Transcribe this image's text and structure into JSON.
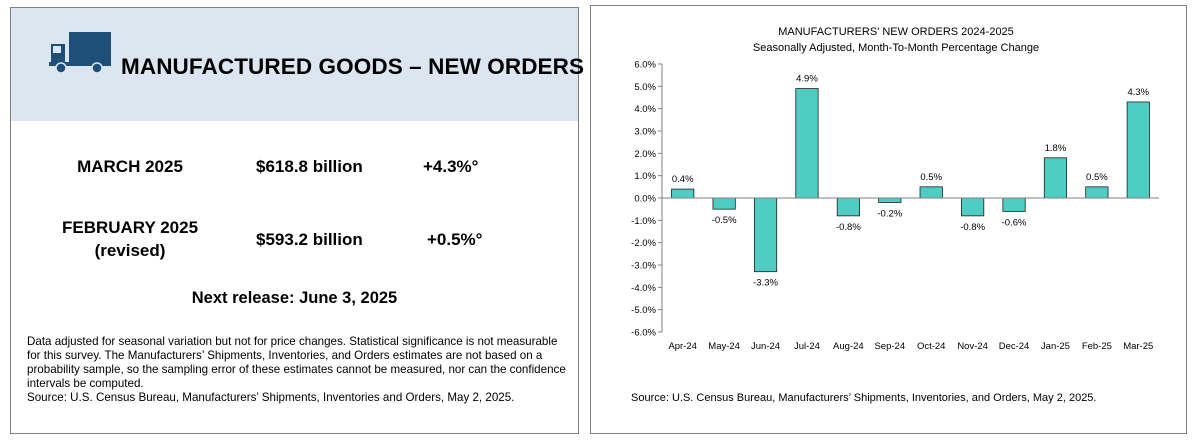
{
  "summary": {
    "title": "MANUFACTURED GOODS – NEW ORDERS",
    "rows": [
      {
        "label_line1": "MARCH 2025",
        "label_line2": "",
        "value": "$618.8 billion",
        "change": "+4.3%°"
      },
      {
        "label_line1": "FEBRUARY 2025",
        "label_line2": "(revised)",
        "value": "$593.2 billion",
        "change": "+0.5%°"
      }
    ],
    "next_release": "Next release: June 3, 2025",
    "note": "Data adjusted for seasonal variation but not for price changes. Statistical significance is not measurable for this survey.  The Manufacturers’ Shipments, Inventories, and Orders estimates are not based on a probability sample, so the sampling error of these estimates cannot be measured, nor can the confidence intervals be computed.",
    "source": "Source: U.S. Census Bureau, Manufacturers’ Shipments, Inventories and Orders, May 2, 2025."
  },
  "icons": {
    "truck": "truck-icon"
  },
  "colors": {
    "bar_fill": "#4ecdc4",
    "bar_stroke": "#1f1f1f",
    "header_bg": "#dce6f1",
    "truck": "#1f4e79"
  },
  "chart_data": {
    "type": "bar",
    "title": "MANUFACTURERS' NEW ORDERS 2024-2025",
    "subtitle": "Seasonally Adjusted,  Month-To-Month Percentage Change",
    "categories": [
      "Apr-24",
      "May-24",
      "Jun-24",
      "Jul-24",
      "Aug-24",
      "Sep-24",
      "Oct-24",
      "Nov-24",
      "Dec-24",
      "Jan-25",
      "Feb-25",
      "Mar-25"
    ],
    "values": [
      0.4,
      -0.5,
      -3.3,
      4.9,
      -0.8,
      -0.2,
      0.5,
      -0.8,
      -0.6,
      1.8,
      0.5,
      4.3
    ],
    "data_labels": [
      "0.4%",
      "-0.5%",
      "-3.3%",
      "4.9%",
      "-0.8%",
      "-0.2%",
      "0.5%",
      "-0.8%",
      "-0.6%",
      "1.8%",
      "0.5%",
      "4.3%"
    ],
    "yticks": [
      6.0,
      5.0,
      4.0,
      3.0,
      2.0,
      1.0,
      0.0,
      -1.0,
      -2.0,
      -3.0,
      -4.0,
      -5.0,
      -6.0
    ],
    "ytick_labels": [
      "6.0%",
      "5.0%",
      "4.0%",
      "3.0%",
      "2.0%",
      "1.0%",
      "0.0%",
      "-1.0%",
      "-2.0%",
      "-3.0%",
      "-4.0%",
      "-5.0%",
      "-6.0%"
    ],
    "ylim": [
      -6.0,
      6.0
    ],
    "xlabel": "",
    "ylabel": "",
    "grid": false,
    "source": "Source: U.S. Census Bureau, Manufacturers’ Shipments, Inventories, and Orders, May 2, 2025."
  }
}
